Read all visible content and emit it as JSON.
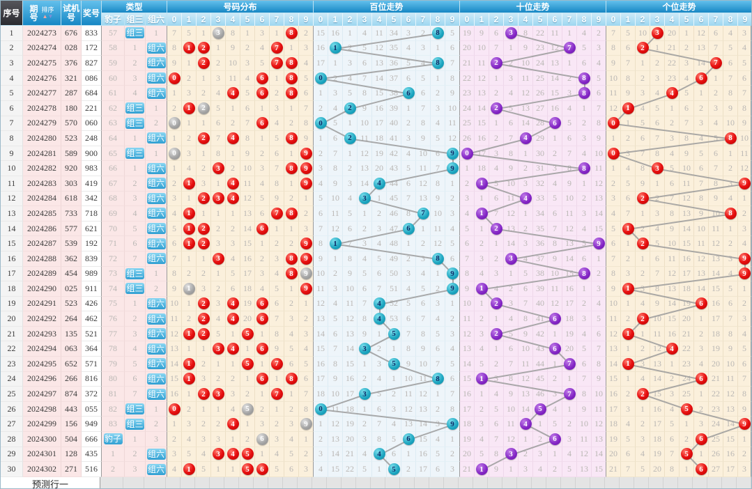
{
  "header": {
    "xuhao": "序号",
    "qihao": "期号",
    "paixu": "排序",
    "sort_up_icon": "▲",
    "sort_down_icon": "▼",
    "shijihao": "试机号",
    "jianghao": "奖号",
    "leixing": "类型",
    "type_subs": [
      "豹子",
      "组三",
      "组六"
    ],
    "groups": [
      "号码分布",
      "百位走势",
      "十位走势",
      "个位走势"
    ],
    "digits": [
      "0",
      "1",
      "2",
      "3",
      "4",
      "5",
      "6",
      "7",
      "8",
      "9"
    ]
  },
  "footer": {
    "label": "预测行一"
  },
  "colors": {
    "header_blue": "#2f9fd2",
    "ball_red": "#d40000",
    "ball_gray": "#a2a2a2",
    "ball_teal": "#1ba4bf",
    "ball_purple": "#8224c4",
    "line_gray": "#9b9b9b",
    "cream_bg": "#fbf0dc",
    "blue_bg": "#eef5fa",
    "pink_bg": "#f9e7f6",
    "left_pink_bg": "#fbe7e7"
  },
  "encoding": {
    "ball": "*",
    "gray_ball": "#",
    "badge": "@"
  },
  "rows": [
    {
      "n": "1",
      "qihao": "2024273",
      "shijihao": "676",
      "jianghao": "833",
      "leixing": "57 @组三 1",
      "dist": "7 5 1 #3 8 1 3 1 *8 2",
      "bai": "15 16 1 4 11 34 3 2 *8 5",
      "shi": "19 9 6 *3 8 22 11 1 4 2",
      "ge": "7 5 10 *3 20 1 12 6 4 3"
    },
    {
      "n": "2",
      "qihao": "2024274",
      "shijihao": "028",
      "jianghao": "172",
      "leixing": "58 1 @组六",
      "dist": "8 *1 *2 1 9 2 4 *7 1 3",
      "bai": "16 *1 2 5 12 35 4 3 1 6",
      "shi": "20 10 7 1 9 23 12 *7 5 3",
      "ge": "8 6 *2 1 21 2 13 7 5 4"
    },
    {
      "n": "3",
      "qihao": "2024275",
      "shijihao": "376",
      "jianghao": "827",
      "leixing": "59 2 @组六",
      "dist": "9 1 *2 2 10 3 5 *7 *8 4",
      "bai": "17 1 3 6 13 36 5 4 *8 7",
      "shi": "21 11 *2 2 10 24 13 1 6 4",
      "ge": "9 7 1 2 22 3 14 *7 6 5"
    },
    {
      "n": "4",
      "qihao": "2024276",
      "shijihao": "321",
      "jianghao": "086",
      "leixing": "60 3 @组六",
      "dist": "*0 2 1 3 11 4 *6 1 *8 5",
      "bai": "*0 2 4 7 14 37 6 5 1 8",
      "shi": "22 12 1 3 11 25 14 2 *8 5",
      "ge": "10 8 2 3 23 4 *6 1 7 6"
    },
    {
      "n": "5",
      "qihao": "2024277",
      "shijihao": "287",
      "jianghao": "684",
      "leixing": "61 4 @组六",
      "dist": "1 3 2 4 *4 5 *6 2 *8 6",
      "bai": "1 3 5 8 15 38 *6 6 2 9",
      "shi": "23 13 2 4 12 26 15 3 *8 6",
      "ge": "11 9 3 4 *4 5 1 2 8 7"
    },
    {
      "n": "6",
      "qihao": "2024278",
      "shijihao": "180",
      "jianghao": "221",
      "leixing": "62 @组三 1",
      "dist": "2 *1 #2 5 1 6 1 3 1 7",
      "bai": "2 4 *2 9 16 39 1 7 3 10",
      "shi": "24 14 *2 5 13 27 16 4 1 7",
      "ge": "12 *1 4 5 1 6 2 3 9 8"
    },
    {
      "n": "7",
      "qihao": "2024279",
      "shijihao": "570",
      "jianghao": "060",
      "leixing": "63 @组三 2",
      "dist": "#0 1 1 6 2 7 *6 4 2 8",
      "bai": "*0 5 1 10 17 40 2 8 4 11",
      "shi": "25 15 1 6 14 28 *6 5 2 8",
      "ge": "*0 1 5 6 2 7 3 4 10 9"
    },
    {
      "n": "8",
      "qihao": "2024280",
      "shijihao": "523",
      "jianghao": "248",
      "leixing": "64 1 @组六",
      "dist": "1 2 *2 7 *4 8 1 5 *8 9",
      "bai": "1 6 *2 11 18 41 3 9 5 12",
      "shi": "26 16 2 7 *4 29 1 6 3 9",
      "ge": "1 2 6 7 3 8 4 5 *8 10"
    },
    {
      "n": "9",
      "qihao": "2024281",
      "shijihao": "589",
      "jianghao": "900",
      "leixing": "65 @组三 1",
      "dist": "#0 3 1 8 1 9 2 6 1 *9",
      "bai": "2 7 1 12 19 42 4 10 6 *9",
      "shi": "*0 17 3 8 1 30 2 7 4 10",
      "ge": "*0 3 7 8 4 9 5 6 1 11"
    },
    {
      "n": "10",
      "qihao": "2024282",
      "shijihao": "920",
      "jianghao": "983",
      "leixing": "66 1 @组六",
      "dist": "1 4 2 *3 2 10 3 7 *8 *9",
      "bai": "3 8 2 13 20 43 5 11 7 *9",
      "shi": "1 18 4 9 2 31 3 8 *8 11",
      "ge": "1 4 8 *3 5 10 6 7 2 12"
    },
    {
      "n": "11",
      "qihao": "2024283",
      "shijihao": "303",
      "jianghao": "419",
      "leixing": "67 2 @组六",
      "dist": "2 *1 3 1 *4 11 4 8 1 *9",
      "bai": "4 9 3 14 *4 44 6 12 8 1",
      "shi": "2 *1 5 10 3 32 4 9 1 12",
      "ge": "2 5 9 1 6 11 7 8 3 *9"
    },
    {
      "n": "12",
      "qihao": "2024284",
      "shijihao": "618",
      "jianghao": "342",
      "leixing": "68 3 @组六",
      "dist": "3 1 *2 *3 *4 12 5 9 2 1",
      "bai": "5 10 4 *3 1 45 7 13 9 2",
      "shi": "3 1 6 11 *4 33 5 10 2 13",
      "ge": "3 6 *2 2 7 12 8 9 4 1"
    },
    {
      "n": "13",
      "qihao": "2024285",
      "shijihao": "733",
      "jianghao": "718",
      "leixing": "69 4 @组六",
      "dist": "4 *1 1 1 1 13 6 *7 *8 2",
      "bai": "6 11 5 1 2 46 8 *7 10 3",
      "shi": "4 *1 7 12 1 34 6 11 3 14",
      "ge": "4 7 1 3 8 13 9 10 *8 2"
    },
    {
      "n": "14",
      "qihao": "2024286",
      "shijihao": "577",
      "jianghao": "621",
      "leixing": "70 5 @组六",
      "dist": "5 *1 *2 2 2 14 *6 1 1 3",
      "bai": "7 12 6 2 3 47 *6 1 11 4",
      "shi": "5 1 *2 13 2 35 7 12 4 15",
      "ge": "5 *1 2 4 9 14 10 11 1 3"
    },
    {
      "n": "15",
      "qihao": "2024287",
      "shijihao": "539",
      "jianghao": "192",
      "leixing": "71 6 @组六",
      "dist": "6 *1 *2 3 3 15 1 2 2 *9",
      "bai": "8 *1 7 3 4 48 1 2 12 5",
      "shi": "6 2 1 14 3 36 8 13 5 *9",
      "ge": "6 1 *2 5 10 15 11 12 2 4"
    },
    {
      "n": "16",
      "qihao": "2024288",
      "shijihao": "362",
      "jianghao": "839",
      "leixing": "72 7 @组六",
      "dist": "7 1 1 *3 4 16 2 3 *8 *9",
      "bai": "9 1 8 4 5 49 2 3 *8 6",
      "shi": "7 3 2 *3 4 37 9 14 6 1",
      "ge": "7 2 1 6 11 16 12 13 3 *9"
    },
    {
      "n": "17",
      "qihao": "2024289",
      "shijihao": "454",
      "jianghao": "989",
      "leixing": "73 @组三 1",
      "dist": "8 2 2 1 5 17 3 4 *8 #9",
      "bai": "10 2 9 5 6 50 3 4 1 *9",
      "shi": "8 4 3 1 5 38 10 15 *8 2",
      "ge": "8 3 2 7 12 17 13 14 4 *9"
    },
    {
      "n": "18",
      "qihao": "2024290",
      "shijihao": "025",
      "jianghao": "911",
      "leixing": "74 @组三 2",
      "dist": "9 #1 3 2 6 18 4 5 1 *9",
      "bai": "11 3 10 6 7 51 4 5 2 *9",
      "shi": "9 *1 4 2 6 39 11 16 1 3",
      "ge": "9 *1 3 8 13 18 14 15 5 1"
    },
    {
      "n": "19",
      "qihao": "2024291",
      "shijihao": "523",
      "jianghao": "426",
      "leixing": "75 1 @组六",
      "dist": "10 1 *2 3 *4 19 *6 6 2 1",
      "bai": "12 4 11 7 *4 52 5 6 3 1",
      "shi": "10 1 *2 3 7 40 12 17 2 4",
      "ge": "10 1 4 9 14 19 *6 16 6 2"
    },
    {
      "n": "20",
      "qihao": "2024292",
      "shijihao": "264",
      "jianghao": "462",
      "leixing": "76 2 @组六",
      "dist": "11 2 *2 4 *4 20 *6 7 3 2",
      "bai": "13 5 12 8 *4 53 6 7 4 2",
      "shi": "11 2 1 4 8 41 *6 18 3 5",
      "ge": "11 2 *2 10 15 20 1 17 7 3"
    },
    {
      "n": "21",
      "qihao": "2024293",
      "shijihao": "135",
      "jianghao": "521",
      "leixing": "77 3 @组六",
      "dist": "12 *1 *2 5 1 *5 1 8 4 3",
      "bai": "14 6 13 9 1 *5 7 8 5 3",
      "shi": "12 3 *2 5 9 42 1 19 4 6",
      "ge": "12 *1 1 11 16 21 2 18 8 4"
    },
    {
      "n": "22",
      "qihao": "2024294",
      "shijihao": "063",
      "jianghao": "364",
      "leixing": "78 4 @组六",
      "dist": "13 1 1 *3 *4 1 *6 9 5 4",
      "bai": "15 7 14 *3 2 1 8 9 6 4",
      "shi": "13 4 1 6 10 43 *6 20 5 7",
      "ge": "13 1 2 12 *4 22 3 19 9 5"
    },
    {
      "n": "23",
      "qihao": "2024295",
      "shijihao": "652",
      "jianghao": "571",
      "leixing": "79 5 @组六",
      "dist": "14 *1 2 1 1 *5 1 *7 6 5",
      "bai": "16 8 15 1 3 *5 9 10 7 5",
      "shi": "14 5 2 7 11 44 1 *7 6 8",
      "ge": "14 *1 3 13 1 23 4 20 10 6"
    },
    {
      "n": "24",
      "qihao": "2024296",
      "shijihao": "266",
      "jianghao": "816",
      "leixing": "80 6 @组六",
      "dist": "15 *1 3 2 2 1 *6 1 *8 6",
      "bai": "17 9 16 2 4 1 10 11 *8 6",
      "shi": "15 *1 3 8 12 45 2 1 7 9",
      "ge": "15 1 4 14 2 24 *6 21 11 7"
    },
    {
      "n": "25",
      "qihao": "2024297",
      "shijihao": "874",
      "jianghao": "372",
      "leixing": "81 7 @组六",
      "dist": "16 1 *2 *3 3 2 1 *7 1 7",
      "bai": "18 10 17 *3 5 2 11 12 1 7",
      "shi": "16 1 4 9 13 46 3 *7 8 10",
      "ge": "16 2 *2 15 3 25 1 22 12 8"
    },
    {
      "n": "26",
      "qihao": "2024298",
      "shijihao": "443",
      "jianghao": "055",
      "leixing": "82 @组三 1",
      "dist": "*0 2 1 1 4 #5 2 1 2 8",
      "bai": "*0 11 18 1 6 3 12 13 2 8",
      "shi": "17 2 5 10 14 *5 4 1 9 11",
      "ge": "17 3 1 16 4 *5 2 23 13 9"
    },
    {
      "n": "27",
      "qihao": "2024299",
      "shijihao": "156",
      "jianghao": "949",
      "leixing": "83 @组三 2",
      "dist": "1 3 2 2 *4 1 3 2 3 #9",
      "bai": "1 12 19 2 7 4 13 14 3 *9",
      "shi": "18 3 6 11 *4 1 5 2 10 12",
      "ge": "18 4 2 17 5 1 3 24 14 *9"
    },
    {
      "n": "28",
      "qihao": "2024300",
      "shijihao": "504",
      "jianghao": "666",
      "leixing": "@豹子 1 3",
      "dist": "2 4 3 3 1 2 #6 3 4 1",
      "bai": "2 13 20 3 8 5 *6 15 4 1",
      "shi": "19 4 7 12 1 2 *6 3 11 13",
      "ge": "19 5 3 18 6 2 *6 25 15 1"
    },
    {
      "n": "29",
      "qihao": "2024301",
      "shijihao": "128",
      "jianghao": "435",
      "leixing": "1 2 @组六",
      "dist": "3 5 4 *3 *4 *5 1 4 5 2",
      "bai": "3 14 21 4 *4 6 1 16 5 2",
      "shi": "20 5 8 *3 2 3 1 4 12 14",
      "ge": "20 6 4 19 7 *5 1 26 16 2"
    },
    {
      "n": "30",
      "qihao": "2024302",
      "shijihao": "271",
      "jianghao": "516",
      "leixing": "2 3 @组六",
      "dist": "4 *1 5 1 1 *5 *6 5 6 3",
      "bai": "4 15 22 5 1 *5 2 17 6 3",
      "shi": "21 *1 9 1 3 4 2 5 13 15",
      "ge": "21 7 5 20 8 1 *6 27 17 3"
    }
  ]
}
